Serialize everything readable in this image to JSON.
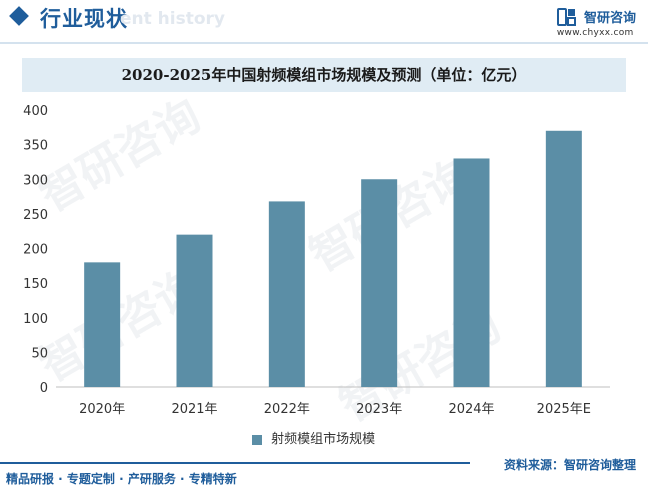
{
  "header": {
    "section_title": "行业现状",
    "section_subtitle": "ent history",
    "brand_name": "智研咨询",
    "brand_url": "www.chyxx.com"
  },
  "watermark_text": "智研咨询",
  "colors": {
    "accent": "#1f5d9b",
    "bar": "#5b8ea6",
    "title_band": "#e0ecf4"
  },
  "chart_data": {
    "type": "bar",
    "title": "2020-2025年中国射频模组市场规模及预测（单位：亿元）",
    "categories": [
      "2020年",
      "2021年",
      "2022年",
      "2023年",
      "2024年",
      "2025年E"
    ],
    "series": [
      {
        "name": "射频模组市场规模",
        "values": [
          180,
          220,
          268,
          300,
          330,
          370
        ]
      }
    ],
    "xlabel": "",
    "ylabel": "",
    "ylim": [
      0,
      400
    ],
    "yticks": [
      0,
      50,
      100,
      150,
      200,
      250,
      300,
      350,
      400
    ],
    "grid": false,
    "legend_position": "bottom-center"
  },
  "footer": {
    "left": "精品研报 · 专题定制 · 产研服务 · 专精特新",
    "right": "资料来源：智研咨询整理"
  }
}
